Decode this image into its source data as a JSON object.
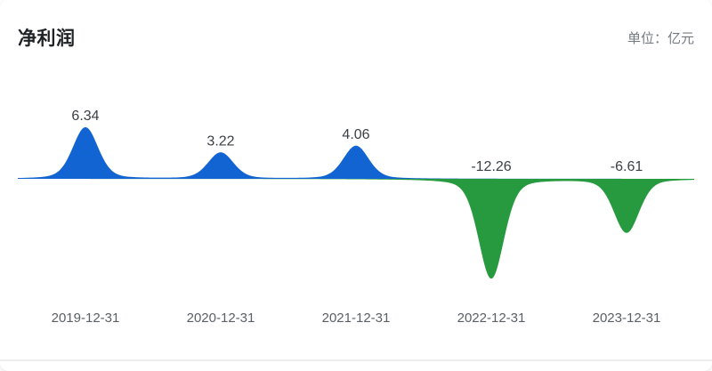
{
  "header": {
    "title": "净利润",
    "unit_label": "单位：亿元"
  },
  "chart_data": {
    "type": "area",
    "variant": "peak-mountain",
    "title": "净利润",
    "unit": "亿元",
    "categories": [
      "2019-12-31",
      "2020-12-31",
      "2021-12-31",
      "2022-12-31",
      "2023-12-31"
    ],
    "values": [
      6.34,
      3.22,
      4.06,
      -12.26,
      -6.61
    ],
    "value_labels": [
      "6.34",
      "3.22",
      "4.06",
      "-12.26",
      "-6.61"
    ],
    "baseline_value": 0,
    "ylim": [
      -13,
      7
    ],
    "grid": false,
    "legend": false,
    "positive_color": "#1264d2",
    "negative_color": "#27993f",
    "value_label_color": "#3c4045",
    "category_label_color": "#5c6065"
  }
}
